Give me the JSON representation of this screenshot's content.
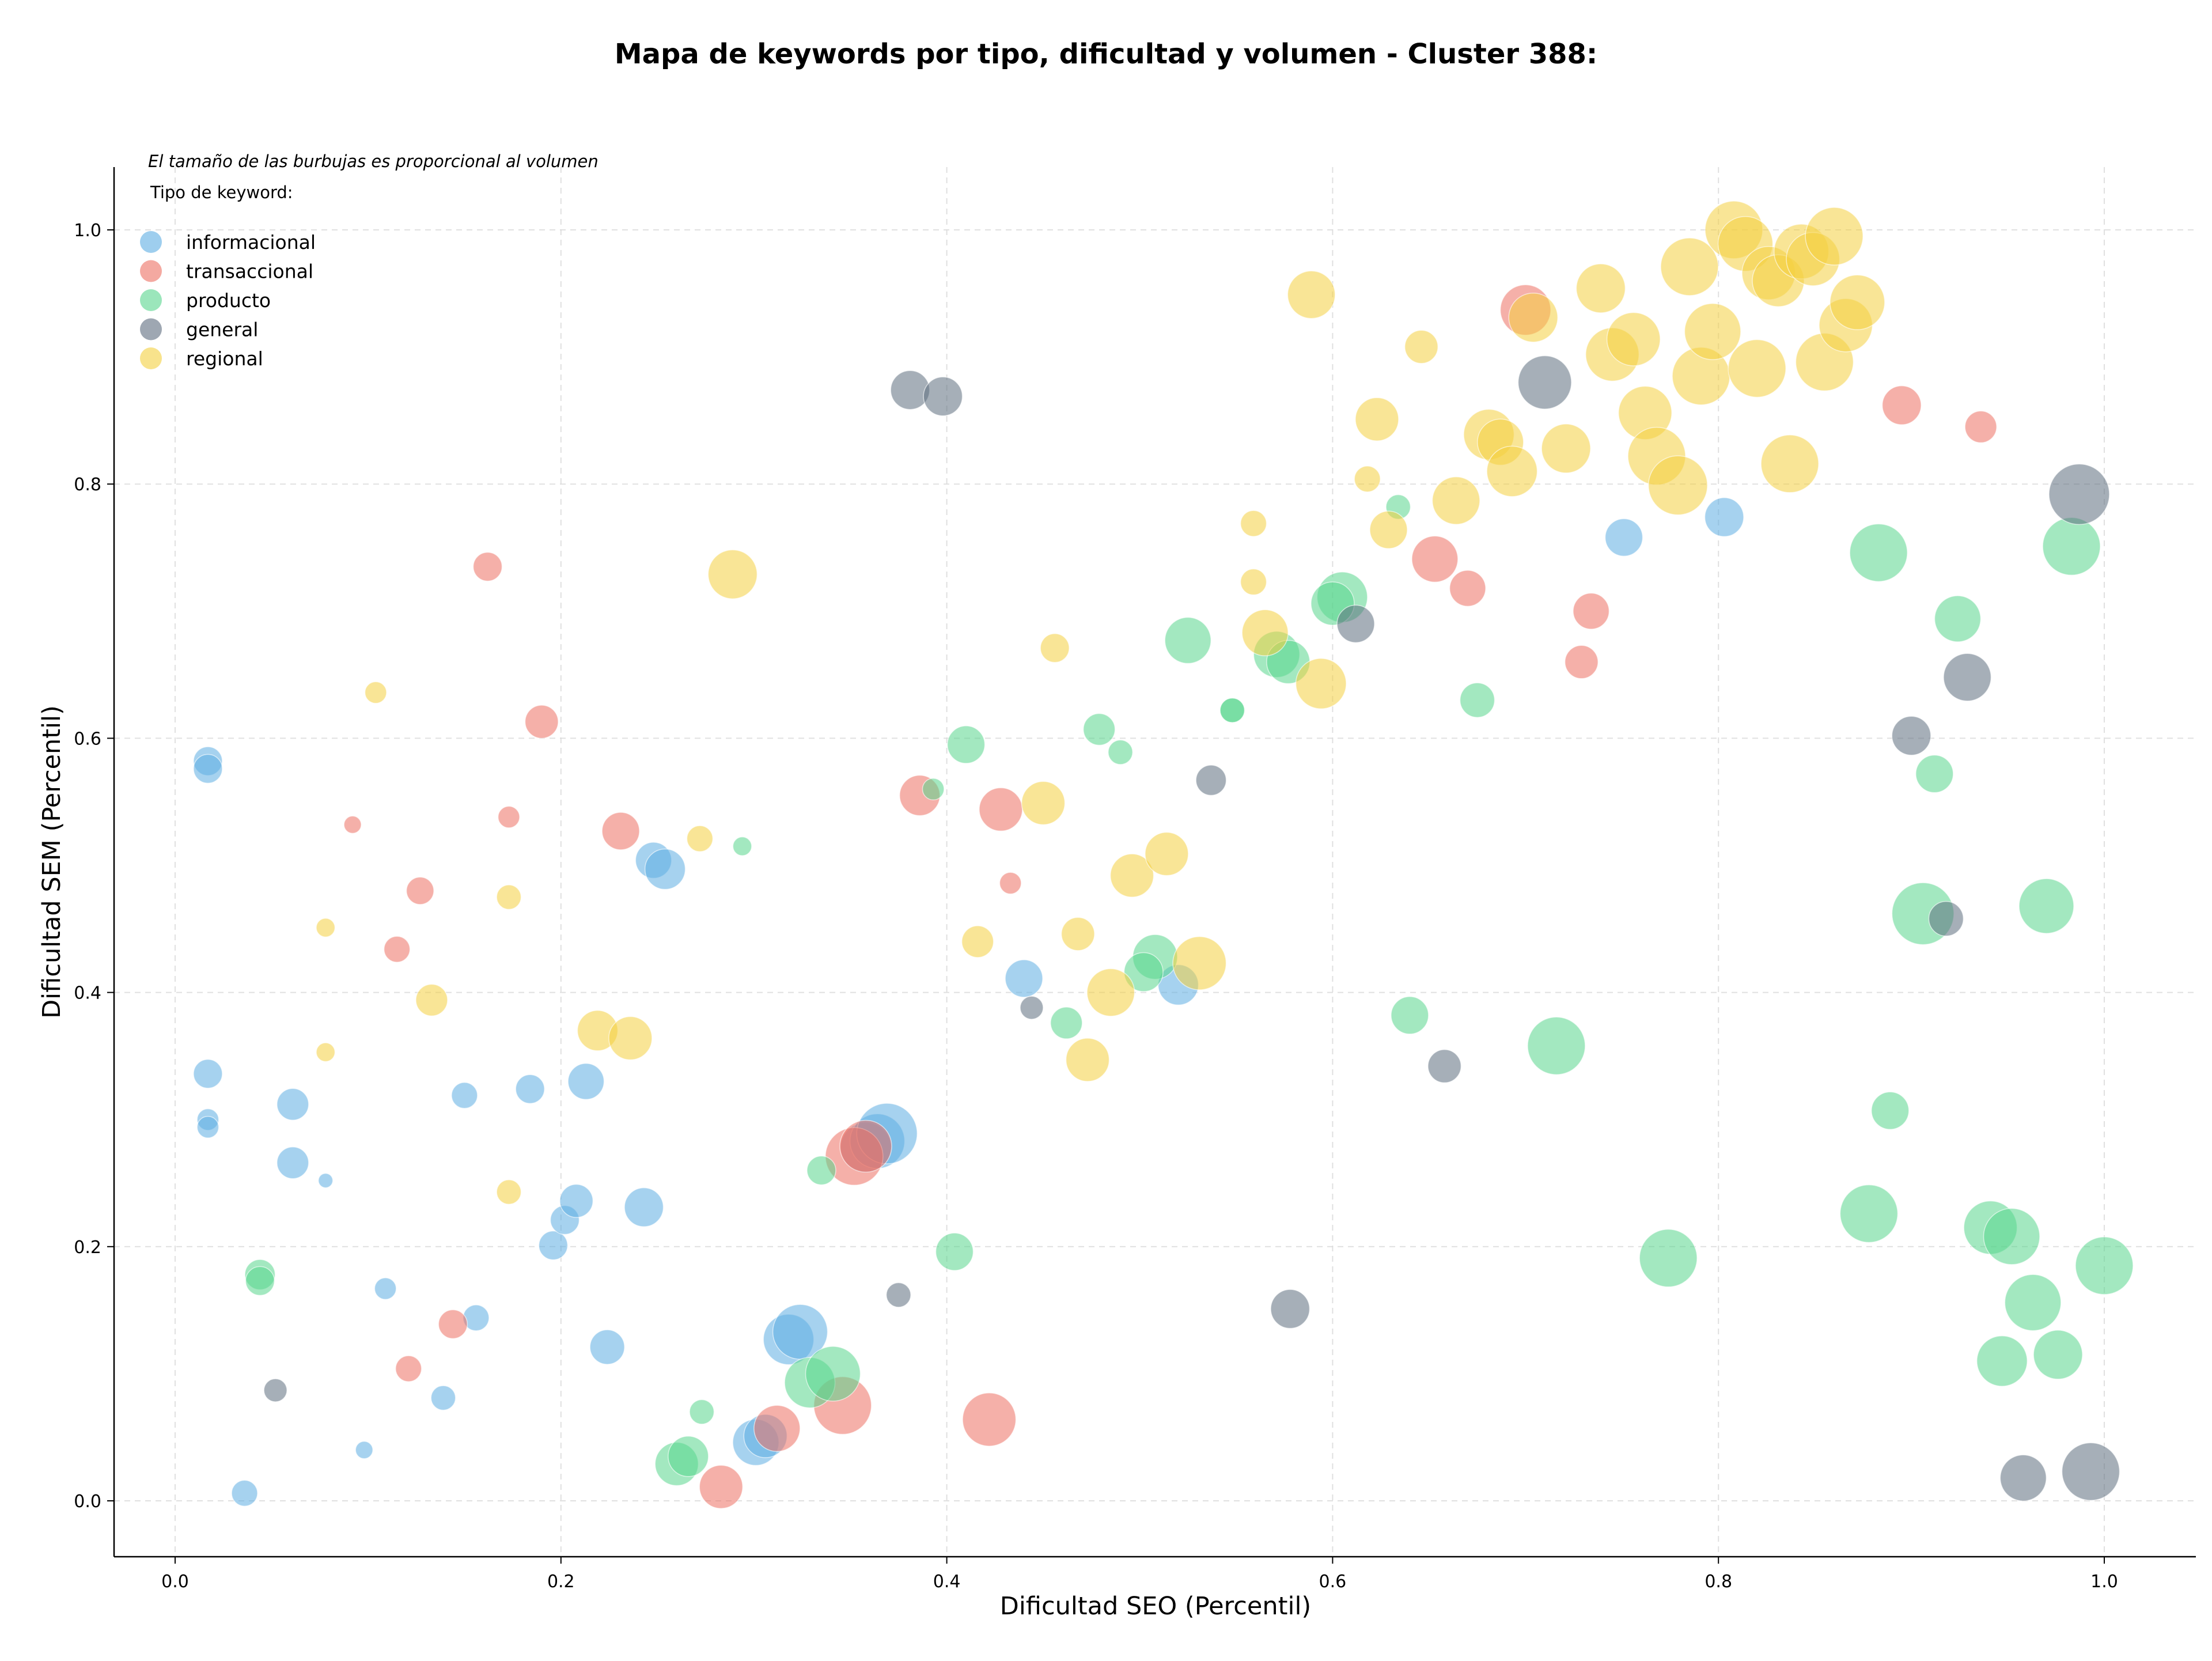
{
  "chart_data": {
    "type": "scatter",
    "title": "Mapa de keywords por tipo, dificultad y volumen - Cluster 388:",
    "xlabel": "Dificultad SEO (Percentil)",
    "ylabel": "Dificultad SEM (Percentil)",
    "xlim": [
      -0.03,
      1.05
    ],
    "ylim": [
      -0.04,
      1.05
    ],
    "xticks": [
      "0.0",
      "0.2",
      "0.4",
      "0.6",
      "0.8",
      "1.0"
    ],
    "yticks": [
      "0.0",
      "0.2",
      "0.4",
      "0.6",
      "0.8",
      "1.0"
    ],
    "grid": true,
    "annotation": "El tamaño de las burbujas es proporcional al volumen",
    "legend_title": "Tipo de keyword:",
    "legend_position": "top-left",
    "series": [
      {
        "name": "informacional",
        "color": "#5dade2",
        "points": [
          [
            0.017,
            0.582,
            2
          ],
          [
            0.017,
            0.576,
            2
          ],
          [
            0.017,
            0.336,
            2
          ],
          [
            0.017,
            0.3,
            1.5
          ],
          [
            0.017,
            0.294,
            1.5
          ],
          [
            0.061,
            0.312,
            2.2
          ],
          [
            0.061,
            0.266,
            2.2
          ],
          [
            0.078,
            0.252,
            1
          ],
          [
            0.036,
            0.006,
            1.8
          ],
          [
            0.098,
            0.04,
            1.2
          ],
          [
            0.109,
            0.167,
            1.5
          ],
          [
            0.139,
            0.081,
            1.7
          ],
          [
            0.15,
            0.319,
            1.8
          ],
          [
            0.156,
            0.144,
            1.8
          ],
          [
            0.184,
            0.324,
            2
          ],
          [
            0.196,
            0.201,
            2
          ],
          [
            0.202,
            0.221,
            2
          ],
          [
            0.208,
            0.236,
            2.3
          ],
          [
            0.213,
            0.33,
            2.5
          ],
          [
            0.224,
            0.121,
            2.4
          ],
          [
            0.243,
            0.231,
            2.7
          ],
          [
            0.248,
            0.504,
            2.5
          ],
          [
            0.254,
            0.497,
            2.8
          ],
          [
            0.301,
            0.046,
            3.2
          ],
          [
            0.306,
            0.051,
            3
          ],
          [
            0.318,
            0.127,
            3.5
          ],
          [
            0.324,
            0.133,
            3.8
          ],
          [
            0.358,
            0.278,
            3.5
          ],
          [
            0.364,
            0.283,
            3.8
          ],
          [
            0.369,
            0.289,
            4.2
          ],
          [
            0.44,
            0.411,
            2.6
          ],
          [
            0.52,
            0.406,
            2.8
          ],
          [
            0.751,
            0.758,
            2.6
          ],
          [
            0.803,
            0.774,
            2.7
          ]
        ]
      },
      {
        "name": "transaccional",
        "color": "#ec7063",
        "points": [
          [
            0.092,
            0.532,
            1.2
          ],
          [
            0.115,
            0.434,
            1.8
          ],
          [
            0.127,
            0.48,
            1.9
          ],
          [
            0.162,
            0.735,
            2
          ],
          [
            0.173,
            0.538,
            1.5
          ],
          [
            0.19,
            0.613,
            2.3
          ],
          [
            0.231,
            0.527,
            2.6
          ],
          [
            0.121,
            0.104,
            1.8
          ],
          [
            0.144,
            0.139,
            2
          ],
          [
            0.283,
            0.011,
            3
          ],
          [
            0.312,
            0.057,
            3.2
          ],
          [
            0.346,
            0.075,
            4
          ],
          [
            0.352,
            0.271,
            4
          ],
          [
            0.358,
            0.279,
            3.6
          ],
          [
            0.386,
            0.555,
            2.8
          ],
          [
            0.428,
            0.544,
            3
          ],
          [
            0.433,
            0.486,
            1.5
          ],
          [
            0.422,
            0.064,
            3.7
          ],
          [
            0.653,
            0.741,
            3.2
          ],
          [
            0.67,
            0.718,
            2.5
          ],
          [
            0.7,
            0.937,
            3.5
          ],
          [
            0.729,
            0.66,
            2.3
          ],
          [
            0.734,
            0.7,
            2.5
          ],
          [
            0.895,
            0.862,
            2.7
          ],
          [
            0.936,
            0.845,
            2.2
          ]
        ]
      },
      {
        "name": "producto",
        "color": "#58d68d",
        "points": [
          [
            0.044,
            0.178,
            2.1
          ],
          [
            0.044,
            0.173,
            2
          ],
          [
            0.26,
            0.029,
            3
          ],
          [
            0.266,
            0.035,
            2.8
          ],
          [
            0.273,
            0.07,
            1.7
          ],
          [
            0.294,
            0.515,
            1.3
          ],
          [
            0.335,
            0.26,
            2
          ],
          [
            0.329,
            0.093,
            3.5
          ],
          [
            0.341,
            0.1,
            3.8
          ],
          [
            0.393,
            0.56,
            1.5
          ],
          [
            0.404,
            0.196,
            2.6
          ],
          [
            0.41,
            0.595,
            2.6
          ],
          [
            0.462,
            0.376,
            2.2
          ],
          [
            0.479,
            0.607,
            2.2
          ],
          [
            0.49,
            0.589,
            1.7
          ],
          [
            0.508,
            0.428,
            3.1
          ],
          [
            0.502,
            0.416,
            2.7
          ],
          [
            0.525,
            0.677,
            3.2
          ],
          [
            0.548,
            0.622,
            1.7
          ],
          [
            0.548,
            0.622,
            1.7
          ],
          [
            0.571,
            0.666,
            3.2
          ],
          [
            0.577,
            0.66,
            3
          ],
          [
            0.605,
            0.711,
            3.5
          ],
          [
            0.6,
            0.706,
            3
          ],
          [
            0.634,
            0.782,
            1.7
          ],
          [
            0.64,
            0.382,
            2.6
          ],
          [
            0.675,
            0.63,
            2.4
          ],
          [
            0.716,
            0.358,
            4
          ],
          [
            0.774,
            0.191,
            4
          ],
          [
            0.878,
            0.226,
            4
          ],
          [
            0.883,
            0.746,
            4
          ],
          [
            0.889,
            0.307,
            2.6
          ],
          [
            0.906,
            0.462,
            4.3
          ],
          [
            0.912,
            0.572,
            2.6
          ],
          [
            0.924,
            0.694,
            3.2
          ],
          [
            0.941,
            0.215,
            3.7
          ],
          [
            0.952,
            0.208,
            3.9
          ],
          [
            0.947,
            0.11,
            3.5
          ],
          [
            0.963,
            0.156,
            3.9
          ],
          [
            0.97,
            0.468,
            3.8
          ],
          [
            0.976,
            0.115,
            3.4
          ],
          [
            0.983,
            0.751,
            4
          ],
          [
            1.0,
            0.185,
            4
          ]
        ]
      },
      {
        "name": "general",
        "color": "#5d6d7e",
        "points": [
          [
            0.052,
            0.087,
            1.6
          ],
          [
            0.375,
            0.162,
            1.7
          ],
          [
            0.381,
            0.874,
            2.7
          ],
          [
            0.398,
            0.869,
            2.7
          ],
          [
            0.444,
            0.388,
            1.6
          ],
          [
            0.537,
            0.567,
            2.1
          ],
          [
            0.578,
            0.151,
            2.7
          ],
          [
            0.612,
            0.69,
            2.6
          ],
          [
            0.658,
            0.342,
            2.3
          ],
          [
            0.71,
            0.88,
            3.7
          ],
          [
            0.9,
            0.602,
            2.7
          ],
          [
            0.918,
            0.458,
            2.4
          ],
          [
            0.929,
            0.648,
            3.3
          ],
          [
            0.958,
            0.018,
            3.2
          ],
          [
            0.987,
            0.792,
            4.2
          ],
          [
            0.993,
            0.023,
            4
          ]
        ]
      },
      {
        "name": "regional",
        "color": "#f4d03f",
        "points": [
          [
            0.078,
            0.451,
            1.3
          ],
          [
            0.078,
            0.353,
            1.3
          ],
          [
            0.104,
            0.636,
            1.5
          ],
          [
            0.133,
            0.394,
            2.2
          ],
          [
            0.173,
            0.475,
            1.7
          ],
          [
            0.173,
            0.243,
            1.7
          ],
          [
            0.219,
            0.37,
            2.8
          ],
          [
            0.236,
            0.364,
            3
          ],
          [
            0.272,
            0.521,
            1.8
          ],
          [
            0.289,
            0.729,
            3.4
          ],
          [
            0.416,
            0.44,
            2.2
          ],
          [
            0.45,
            0.549,
            3
          ],
          [
            0.456,
            0.671,
            2
          ],
          [
            0.468,
            0.446,
            2.3
          ],
          [
            0.473,
            0.347,
            3
          ],
          [
            0.485,
            0.4,
            3.3
          ],
          [
            0.496,
            0.492,
            3
          ],
          [
            0.514,
            0.509,
            3
          ],
          [
            0.531,
            0.423,
            3.7
          ],
          [
            0.559,
            0.769,
            1.8
          ],
          [
            0.559,
            0.723,
            1.8
          ],
          [
            0.565,
            0.683,
            3.2
          ],
          [
            0.589,
            0.949,
            3.3
          ],
          [
            0.594,
            0.643,
            3.5
          ],
          [
            0.618,
            0.804,
            1.8
          ],
          [
            0.629,
            0.764,
            2.6
          ],
          [
            0.623,
            0.851,
            3
          ],
          [
            0.646,
            0.908,
            2.3
          ],
          [
            0.664,
            0.787,
            3.3
          ],
          [
            0.681,
            0.839,
            3.5
          ],
          [
            0.687,
            0.833,
            3.2
          ],
          [
            0.693,
            0.81,
            3.5
          ],
          [
            0.704,
            0.931,
            3.4
          ],
          [
            0.721,
            0.828,
            3.4
          ],
          [
            0.739,
            0.954,
            3.4
          ],
          [
            0.745,
            0.902,
            3.7
          ],
          [
            0.756,
            0.914,
            3.7
          ],
          [
            0.762,
            0.856,
            3.7
          ],
          [
            0.768,
            0.822,
            4
          ],
          [
            0.779,
            0.799,
            4.1
          ],
          [
            0.785,
            0.971,
            4
          ],
          [
            0.791,
            0.885,
            4
          ],
          [
            0.797,
            0.92,
            3.9
          ],
          [
            0.808,
            1.0,
            4
          ],
          [
            0.814,
            0.989,
            3.8
          ],
          [
            0.82,
            0.891,
            4
          ],
          [
            0.826,
            0.966,
            3.7
          ],
          [
            0.831,
            0.96,
            3.6
          ],
          [
            0.837,
            0.816,
            4
          ],
          [
            0.843,
            0.983,
            3.8
          ],
          [
            0.849,
            0.977,
            3.7
          ],
          [
            0.855,
            0.896,
            4
          ],
          [
            0.86,
            0.995,
            4
          ],
          [
            0.866,
            0.925,
            3.7
          ],
          [
            0.872,
            0.943,
            3.8
          ]
        ]
      }
    ]
  }
}
